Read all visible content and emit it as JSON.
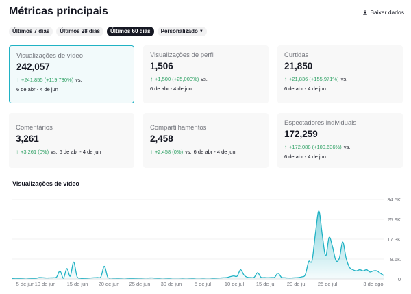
{
  "header": {
    "title": "Métricas principais",
    "download_label": "Baixar dados"
  },
  "tabs": [
    {
      "label": "Últimos 7 dias",
      "active": false
    },
    {
      "label": "Últimos 28 dias",
      "active": false
    },
    {
      "label": "Últimos 60 dias",
      "active": true
    },
    {
      "label": "Personalizado",
      "active": false,
      "has_dropdown": true
    }
  ],
  "cards": [
    {
      "label": "Visualizações de vídeo",
      "value": "242,057",
      "delta": "+241,855 (+119,730%)",
      "vs": "vs.",
      "range": "6 de abr - 4 de jun",
      "selected": true
    },
    {
      "label": "Visualizações de perfil",
      "value": "1,506",
      "delta": "+1,500 (+25,000%)",
      "vs": "vs.",
      "range": "6 de abr - 4 de jun",
      "selected": false
    },
    {
      "label": "Curtidas",
      "value": "21,850",
      "delta": "+21,836 (+155,971%)",
      "vs": "vs.",
      "range": "6 de abr - 4 de jun",
      "selected": false
    },
    {
      "label": "Comentários",
      "value": "3,261",
      "delta": "+3,261 (0%)",
      "vs": "vs.",
      "range": "6 de abr - 4 de jun",
      "selected": false
    },
    {
      "label": "Compartilhamentos",
      "value": "2,458",
      "delta": "+2,458 (0%)",
      "vs": "vs.",
      "range": "6 de abr - 4 de jun",
      "selected": false
    },
    {
      "label": "Espectadores individuais",
      "value": "172,259",
      "delta": "+172,088 (+100,636%)",
      "vs": "vs.",
      "range": "6 de abr - 4 de jun",
      "selected": false
    }
  ],
  "colors": {
    "accent": "#20b2c4",
    "positive": "#2da063",
    "text": "#161823",
    "muted": "#73757c"
  },
  "chart_data": {
    "type": "area",
    "title": "Visualizações de vídeo",
    "x_tick_labels": [
      "5 de jun",
      "10 de jun",
      "15 de jun",
      "20 de jun",
      "25 de jun",
      "30 de jun",
      "5 de jul",
      "10 de jul",
      "15 de jul",
      "20 de jul",
      "25 de jul",
      "3 de ago"
    ],
    "y_tick_labels": [
      "34.5K",
      "25.9K",
      "17.3K",
      "8.6K",
      "0"
    ],
    "ylim": [
      0,
      34500
    ],
    "grid": true,
    "series": [
      {
        "values": [
          200,
          300,
          250,
          300,
          400,
          300,
          250,
          300,
          600,
          500,
          400,
          450,
          500,
          800,
          3500,
          300,
          4500,
          1200,
          7300,
          1000,
          300,
          250,
          300,
          400,
          500,
          600,
          900,
          5500,
          800,
          400,
          350,
          300,
          350,
          400,
          300,
          250,
          300,
          350,
          350,
          400,
          400,
          450,
          350,
          300,
          400,
          350,
          300,
          400,
          400,
          400,
          350,
          400,
          350,
          300,
          400,
          400,
          350,
          400,
          400,
          300,
          350,
          400,
          500,
          600,
          1000,
          1300,
          1200,
          4000,
          1700,
          700,
          600,
          700,
          2700,
          700,
          600,
          500,
          600,
          700,
          2500,
          700,
          500,
          400,
          400,
          500,
          600,
          900,
          1800,
          7500,
          8000,
          20000,
          29500,
          19000,
          10000,
          18000,
          14000,
          8000,
          9000,
          16000,
          9000,
          5000,
          4000,
          3500,
          4000,
          3500,
          4000,
          3000,
          3500,
          3500,
          2500,
          1500
        ]
      }
    ]
  }
}
